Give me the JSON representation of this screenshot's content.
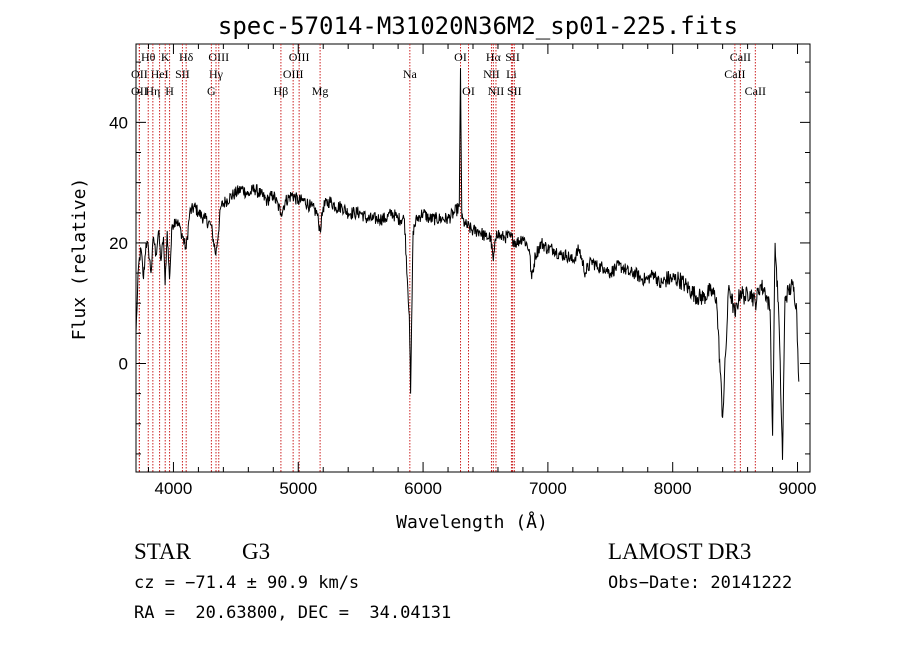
{
  "chart_data": {
    "type": "line",
    "title": "spec-57014-M31020N36M2_sp01-225.fits",
    "xlabel": "Wavelength (Å)",
    "ylabel": "Flux (relative)",
    "xlim": [
      3700,
      9100
    ],
    "ylim": [
      -18,
      53
    ],
    "x_ticks": [
      4000,
      5000,
      6000,
      7000,
      8000,
      9000
    ],
    "y_ticks": [
      0,
      20,
      40
    ],
    "grid": false,
    "line_color": "#000000",
    "marker_color": "#cc2222",
    "series": [
      {
        "x": [
          3700,
          3720,
          3740,
          3760,
          3780,
          3800,
          3820,
          3840,
          3860,
          3880,
          3900,
          3920,
          3933,
          3950,
          3968,
          3990,
          4020,
          4060,
          4102,
          4130,
          4170,
          4200,
          4250,
          4300,
          4340,
          4380,
          4420,
          4480,
          4550,
          4600,
          4650,
          4700,
          4750,
          4800,
          4861,
          4900,
          4950,
          5000,
          5050,
          5100,
          5150,
          5175,
          5200,
          5250,
          5300,
          5350,
          5400,
          5450,
          5500,
          5550,
          5600,
          5650,
          5700,
          5750,
          5800,
          5850,
          5890,
          5900,
          5920,
          5950,
          6000,
          6050,
          6100,
          6150,
          6200,
          6250,
          6290,
          6300,
          6310,
          6340,
          6400,
          6450,
          6500,
          6540,
          6563,
          6590,
          6620,
          6650,
          6700,
          6750,
          6800,
          6850,
          6870,
          6900,
          6950,
          7000,
          7050,
          7100,
          7150,
          7200,
          7250,
          7300,
          7350,
          7400,
          7450,
          7500,
          7550,
          7600,
          7650,
          7700,
          7750,
          7800,
          7850,
          7900,
          7950,
          8000,
          8050,
          8100,
          8150,
          8200,
          8250,
          8300,
          8350,
          8400,
          8450,
          8498,
          8542,
          8580,
          8620,
          8662,
          8700,
          8740,
          8780,
          8800,
          8820,
          8850,
          8880,
          8900,
          8930,
          8960,
          8990,
          9010
        ],
        "values": [
          5,
          16,
          19,
          14,
          20,
          19,
          15,
          21,
          18,
          22,
          17,
          21,
          13,
          22,
          14,
          23,
          24,
          22,
          19,
          25,
          26,
          25,
          24,
          23,
          18,
          26,
          27,
          28,
          29,
          28,
          29,
          28,
          27,
          28,
          25,
          27,
          28,
          27,
          27,
          26,
          25,
          22,
          26,
          27,
          26,
          26,
          25,
          25,
          25,
          24,
          24,
          24,
          24,
          25,
          24,
          24,
          8,
          -5,
          22,
          24,
          25,
          24,
          24,
          24,
          24,
          25,
          26,
          49,
          24,
          23,
          22,
          22,
          21,
          21,
          17,
          22,
          21,
          21,
          21,
          20,
          21,
          19,
          14,
          18,
          20,
          19,
          19,
          18,
          18,
          17,
          19,
          15,
          17,
          16,
          16,
          15,
          16,
          16,
          15,
          15,
          14,
          14,
          15,
          13,
          14,
          14,
          14,
          13,
          12,
          11,
          11,
          12,
          11,
          -9,
          13,
          8,
          12,
          11,
          12,
          10,
          13,
          12,
          9,
          -12,
          20,
          8,
          -16,
          11,
          12,
          13,
          10,
          -3
        ]
      }
    ],
    "line_markers": [
      {
        "label": "Hθ",
        "x": 3798,
        "row": 0
      },
      {
        "label": "OII",
        "x": 3727,
        "row": 1
      },
      {
        "label": "OII",
        "x": 3727,
        "row": 2
      },
      {
        "label": "K",
        "x": 3934,
        "row": 0
      },
      {
        "label": "HeI",
        "x": 3889,
        "row": 1
      },
      {
        "label": "Hη",
        "x": 3835,
        "row": 2
      },
      {
        "label": "Hδ",
        "x": 4102,
        "row": 0
      },
      {
        "label": "SII",
        "x": 4072,
        "row": 1
      },
      {
        "label": "H",
        "x": 3969,
        "row": 2
      },
      {
        "label": "OIII",
        "x": 4363,
        "row": 0
      },
      {
        "label": "Hγ",
        "x": 4341,
        "row": 1
      },
      {
        "label": "G",
        "x": 4304,
        "row": 2
      },
      {
        "label": "OIII",
        "x": 5007,
        "row": 0
      },
      {
        "label": "OIII",
        "x": 4959,
        "row": 1
      },
      {
        "label": "Hβ",
        "x": 4861,
        "row": 2
      },
      {
        "label": "Mg",
        "x": 5175,
        "row": 2
      },
      {
        "label": "Na",
        "x": 5894,
        "row": 1
      },
      {
        "label": "OI",
        "x": 6300,
        "row": 0
      },
      {
        "label": "OI",
        "x": 6364,
        "row": 2
      },
      {
        "label": "Hα",
        "x": 6563,
        "row": 0
      },
      {
        "label": "SII",
        "x": 6717,
        "row": 0
      },
      {
        "label": "NII",
        "x": 6548,
        "row": 1
      },
      {
        "label": "Li",
        "x": 6708,
        "row": 1
      },
      {
        "label": "NII",
        "x": 6584,
        "row": 2
      },
      {
        "label": "SII",
        "x": 6731,
        "row": 2
      },
      {
        "label": "CaII",
        "x": 8542,
        "row": 0
      },
      {
        "label": "CaII",
        "x": 8498,
        "row": 1
      },
      {
        "label": "CaII",
        "x": 8662,
        "row": 2
      }
    ]
  },
  "footer": {
    "object_class": "STAR",
    "subclass": "G3",
    "survey": "LAMOST DR3",
    "redshift_line": "cz = −71.4 ± 90.9 km/s",
    "obs_date_line": "Obs−Date: 20141222",
    "coords_line": "RA =  20.63800, DEC =  34.04131"
  }
}
